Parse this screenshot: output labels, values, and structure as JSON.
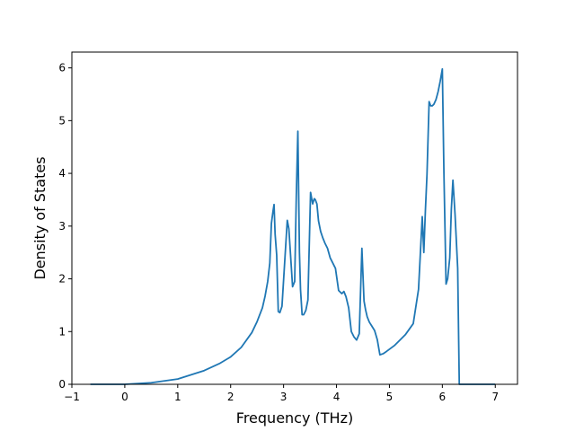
{
  "chart_data": {
    "type": "line",
    "title": "",
    "xlabel": "Frequency (THz)",
    "ylabel": "Density of States",
    "xlim": [
      -1.0,
      7.42
    ],
    "ylim": [
      0,
      6.3
    ],
    "x_ticks": [
      -1,
      0,
      1,
      2,
      3,
      4,
      5,
      6,
      7
    ],
    "y_ticks": [
      0,
      1,
      2,
      3,
      4,
      5,
      6
    ],
    "grid": false,
    "legend": "none",
    "colors": {
      "line": "#1f77b4",
      "axes": "#000000",
      "background": "#ffffff"
    },
    "series": [
      {
        "x": [
          -0.65,
          0.0,
          0.5,
          1.0,
          1.5,
          1.8,
          2.0,
          2.2,
          2.4,
          2.5,
          2.6,
          2.65,
          2.7,
          2.74,
          2.77,
          2.8,
          2.82,
          2.84,
          2.87,
          2.9,
          2.93,
          2.97,
          3.02,
          3.07,
          3.1,
          3.13,
          3.17,
          3.21,
          3.24,
          3.27,
          3.3,
          3.32,
          3.35,
          3.38,
          3.42,
          3.46,
          3.51,
          3.55,
          3.58,
          3.6,
          3.63,
          3.66,
          3.7,
          3.74,
          3.78,
          3.83,
          3.88,
          3.93,
          3.98,
          4.04,
          4.1,
          4.14,
          4.18,
          4.23,
          4.28,
          4.33,
          4.38,
          4.43,
          4.48,
          4.52,
          4.55,
          4.58,
          4.62,
          4.67,
          4.72,
          4.77,
          4.82,
          4.88,
          4.94,
          5.1,
          5.3,
          5.45,
          5.55,
          5.62,
          5.65,
          5.68,
          5.71,
          5.75,
          5.78,
          5.81,
          5.84,
          5.88,
          5.92,
          5.96,
          6.0,
          6.03,
          6.07,
          6.1,
          6.14,
          6.17,
          6.2,
          6.24,
          6.29,
          6.32,
          6.36,
          6.4,
          6.43,
          6.45,
          7.0
        ],
        "y": [
          0.0,
          0.0,
          0.03,
          0.1,
          0.26,
          0.4,
          0.52,
          0.7,
          0.98,
          1.19,
          1.45,
          1.67,
          1.95,
          2.3,
          3.05,
          3.28,
          3.41,
          2.85,
          2.45,
          1.38,
          1.36,
          1.48,
          2.3,
          3.11,
          2.95,
          2.48,
          1.85,
          1.95,
          3.55,
          4.8,
          2.5,
          1.8,
          1.32,
          1.32,
          1.4,
          1.6,
          3.64,
          3.42,
          3.52,
          3.5,
          3.42,
          3.1,
          2.9,
          2.78,
          2.68,
          2.58,
          2.4,
          2.3,
          2.2,
          1.78,
          1.72,
          1.76,
          1.66,
          1.45,
          1.0,
          0.9,
          0.84,
          0.96,
          2.58,
          1.58,
          1.41,
          1.28,
          1.18,
          1.1,
          1.02,
          0.85,
          0.56,
          0.58,
          0.62,
          0.74,
          0.94,
          1.15,
          1.8,
          3.18,
          2.5,
          3.3,
          3.98,
          5.36,
          5.28,
          5.28,
          5.31,
          5.4,
          5.55,
          5.75,
          5.98,
          4.0,
          1.9,
          2.0,
          2.4,
          3.32,
          3.87,
          3.22,
          2.2,
          0.0,
          0.0,
          0.0,
          0.0,
          0.0,
          0.0
        ]
      }
    ]
  }
}
